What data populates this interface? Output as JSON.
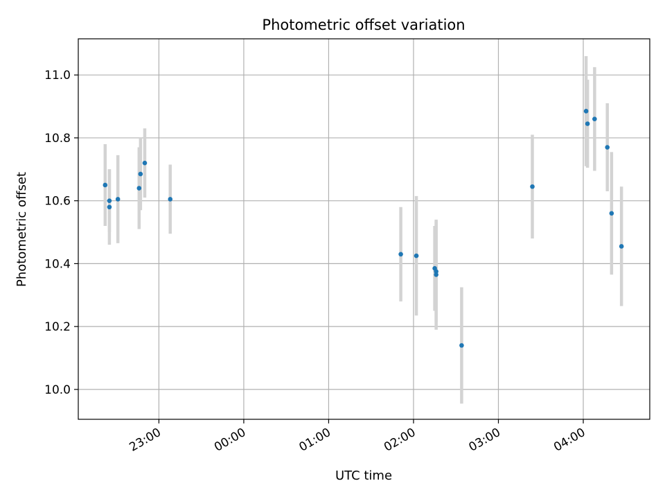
{
  "chart_data": {
    "type": "scatter",
    "title": "Photometric offset variation",
    "xlabel": "UTC time",
    "ylabel": "Photometric offset",
    "grid": true,
    "x_axis": {
      "kind": "time",
      "range": [
        "22:03",
        "04:47"
      ],
      "ticks": [
        "23:00",
        "00:00",
        "01:00",
        "02:00",
        "03:00",
        "04:00"
      ]
    },
    "y_axis": {
      "range": [
        9.905,
        11.115
      ],
      "ticks": [
        10.0,
        10.2,
        10.4,
        10.6,
        10.8,
        11.0
      ],
      "tick_labels": [
        "10.0",
        "10.2",
        "10.4",
        "10.6",
        "10.8",
        "11.0"
      ]
    },
    "series": [
      {
        "color": "#1f77b4",
        "errorbar_color": "#d3d3d3",
        "points": [
          {
            "x": "22:22",
            "y": 10.65,
            "yerr": 0.13
          },
          {
            "x": "22:25",
            "y": 10.6,
            "yerr": 0.1
          },
          {
            "x": "22:25",
            "y": 10.58,
            "yerr": 0.12
          },
          {
            "x": "22:31",
            "y": 10.605,
            "yerr": 0.14
          },
          {
            "x": "22:46",
            "y": 10.64,
            "yerr": 0.13
          },
          {
            "x": "22:47",
            "y": 10.685,
            "yerr": 0.115
          },
          {
            "x": "22:50",
            "y": 10.72,
            "yerr": 0.11
          },
          {
            "x": "23:08",
            "y": 10.605,
            "yerr": 0.11
          },
          {
            "x": "01:51",
            "y": 10.43,
            "yerr": 0.15
          },
          {
            "x": "02:02",
            "y": 10.425,
            "yerr": 0.19
          },
          {
            "x": "02:15",
            "y": 10.385,
            "yerr": 0.135
          },
          {
            "x": "02:16",
            "y": 10.375,
            "yerr": 0.16
          },
          {
            "x": "02:16",
            "y": 10.365,
            "yerr": 0.175
          },
          {
            "x": "02:34",
            "y": 10.14,
            "yerr": 0.185
          },
          {
            "x": "03:24",
            "y": 10.645,
            "yerr": 0.165
          },
          {
            "x": "04:02",
            "y": 10.885,
            "yerr": 0.175
          },
          {
            "x": "04:03",
            "y": 10.845,
            "yerr": 0.14
          },
          {
            "x": "04:08",
            "y": 10.86,
            "yerr": 0.165
          },
          {
            "x": "04:17",
            "y": 10.77,
            "yerr": 0.14
          },
          {
            "x": "04:20",
            "y": 10.56,
            "yerr": 0.195
          },
          {
            "x": "04:27",
            "y": 10.455,
            "yerr": 0.19
          }
        ]
      }
    ]
  }
}
